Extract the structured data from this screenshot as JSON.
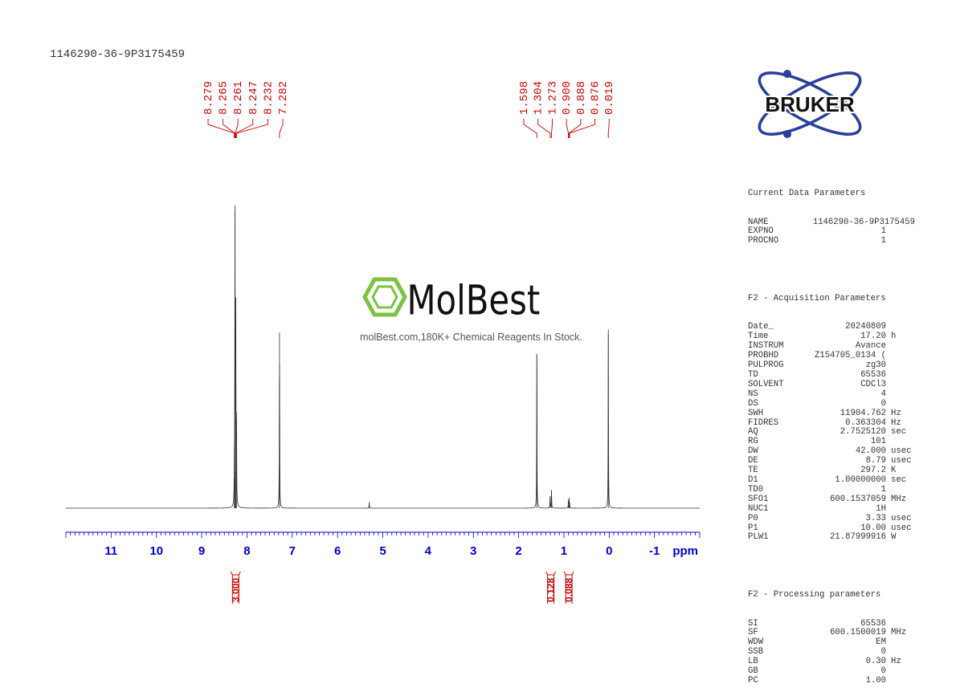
{
  "sample_id": "1146290-36-9P3175459",
  "logo": {
    "text": "BRUKER"
  },
  "watermark": {
    "brand": "MolBest",
    "tagline": "molBest.com,180K+ Chemical Reagents In Stock."
  },
  "chart_data": {
    "type": "line",
    "title": "1146290-36-9P3175459",
    "xlabel": "ppm",
    "xlim": [
      12.0,
      -2.0
    ],
    "x_ticks": [
      11,
      10,
      9,
      8,
      7,
      6,
      5,
      4,
      3,
      2,
      1,
      0,
      -1
    ],
    "x_tick_labels": [
      "11",
      "10",
      "9",
      "8",
      "7",
      "6",
      "5",
      "4",
      "3",
      "2",
      "1",
      "0",
      "-1"
    ],
    "peaks": [
      {
        "ppm": 8.265,
        "height": 0.98
      },
      {
        "ppm": 8.247,
        "height": 0.62
      },
      {
        "ppm": 8.232,
        "height": 0.3
      },
      {
        "ppm": 8.279,
        "height": 0.1
      },
      {
        "ppm": 8.261,
        "height": 0.12
      },
      {
        "ppm": 7.282,
        "height": 0.58
      },
      {
        "ppm": 5.3,
        "height": 0.02
      },
      {
        "ppm": 1.598,
        "height": 0.51
      },
      {
        "ppm": 1.304,
        "height": 0.04
      },
      {
        "ppm": 1.273,
        "height": 0.06
      },
      {
        "ppm": 0.9,
        "height": 0.025
      },
      {
        "ppm": 0.888,
        "height": 0.03
      },
      {
        "ppm": 0.876,
        "height": 0.02
      },
      {
        "ppm": 0.019,
        "height": 0.59
      }
    ],
    "peak_labels": [
      {
        "group": "aromatic",
        "labels": [
          "8.279",
          "8.265",
          "8.261",
          "8.247",
          "8.232",
          "7.282"
        ],
        "target_ppm": [
          8.279,
          8.265,
          8.261,
          8.247,
          8.232,
          7.282
        ]
      },
      {
        "group": "aliphatic",
        "labels": [
          "1.598",
          "1.304",
          "1.273",
          "0.900",
          "0.888",
          "0.876",
          "0.019"
        ],
        "target_ppm": [
          1.598,
          1.304,
          1.273,
          0.9,
          0.888,
          0.876,
          0.019
        ]
      }
    ],
    "integrals": [
      {
        "ppm": 8.25,
        "value": "3.000"
      },
      {
        "ppm": 1.29,
        "value": "0.128"
      },
      {
        "ppm": 0.89,
        "value": "0.088"
      }
    ],
    "colors": {
      "spectrum": "#333333",
      "axis": "#0000cc",
      "annotation": "#cc0000"
    }
  },
  "parameters": {
    "current": {
      "title": "Current Data Parameters",
      "rows": [
        {
          "name": "NAME",
          "value": "1146290-36-9P3175459",
          "unit": ""
        },
        {
          "name": "EXPNO",
          "value": "1",
          "unit": ""
        },
        {
          "name": "PROCNO",
          "value": "1",
          "unit": ""
        }
      ]
    },
    "acquisition": {
      "title": "F2 - Acquisition Parameters",
      "rows": [
        {
          "name": "Date_",
          "value": "20240809",
          "unit": ""
        },
        {
          "name": "Time",
          "value": "17.20",
          "unit": "h"
        },
        {
          "name": "INSTRUM",
          "value": "Avance",
          "unit": ""
        },
        {
          "name": "PROBHD",
          "value": "Z154705_0134 (",
          "unit": ""
        },
        {
          "name": "PULPROG",
          "value": "zg30",
          "unit": ""
        },
        {
          "name": "TD",
          "value": "65536",
          "unit": ""
        },
        {
          "name": "SOLVENT",
          "value": "CDCl3",
          "unit": ""
        },
        {
          "name": "NS",
          "value": "4",
          "unit": ""
        },
        {
          "name": "DS",
          "value": "0",
          "unit": ""
        },
        {
          "name": "SWH",
          "value": "11904.762",
          "unit": "Hz"
        },
        {
          "name": "FIDRES",
          "value": "0.363304",
          "unit": "Hz"
        },
        {
          "name": "AQ",
          "value": "2.7525120",
          "unit": "sec"
        },
        {
          "name": "RG",
          "value": "101",
          "unit": ""
        },
        {
          "name": "DW",
          "value": "42.000",
          "unit": "usec"
        },
        {
          "name": "DE",
          "value": "8.79",
          "unit": "usec"
        },
        {
          "name": "TE",
          "value": "297.2",
          "unit": "K"
        },
        {
          "name": "D1",
          "value": "1.00000000",
          "unit": "sec"
        },
        {
          "name": "TD0",
          "value": "1",
          "unit": ""
        },
        {
          "name": "SFO1",
          "value": "600.1537059",
          "unit": "MHz"
        },
        {
          "name": "NUC1",
          "value": "1H",
          "unit": ""
        },
        {
          "name": "P0",
          "value": "3.33",
          "unit": "usec"
        },
        {
          "name": "P1",
          "value": "10.00",
          "unit": "usec"
        },
        {
          "name": "PLW1",
          "value": "21.87999916",
          "unit": "W"
        }
      ]
    },
    "processing": {
      "title": "F2 - Processing parameters",
      "rows": [
        {
          "name": "SI",
          "value": "65536",
          "unit": ""
        },
        {
          "name": "SF",
          "value": "600.1500019",
          "unit": "MHz"
        },
        {
          "name": "WDW",
          "value": "EM",
          "unit": ""
        },
        {
          "name": "SSB",
          "value": "0",
          "unit": ""
        },
        {
          "name": "LB",
          "value": "0.30",
          "unit": "Hz"
        },
        {
          "name": "GB",
          "value": "0",
          "unit": ""
        },
        {
          "name": "PC",
          "value": "1.00",
          "unit": ""
        }
      ]
    }
  }
}
